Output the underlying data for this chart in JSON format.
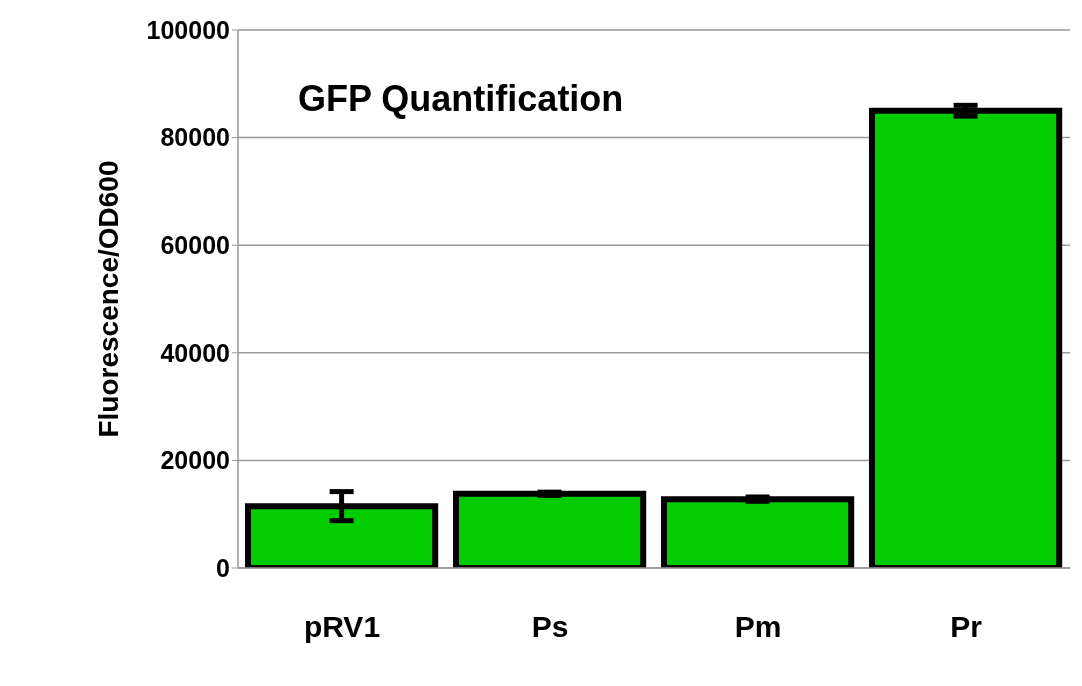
{
  "chart_data": {
    "type": "bar",
    "title": "GFP Quantification",
    "ylabel": "Fluorescence/OD600",
    "categories": [
      "pRV1",
      "Ps",
      "Pm",
      "Pr"
    ],
    "values": [
      11500,
      13800,
      12800,
      85000
    ],
    "errors": [
      2700,
      300,
      400,
      1000
    ],
    "color": "#00cc00",
    "ylim": [
      0,
      100000
    ],
    "yticks": [
      0,
      20000,
      40000,
      60000,
      80000,
      100000
    ],
    "grid": "y"
  }
}
